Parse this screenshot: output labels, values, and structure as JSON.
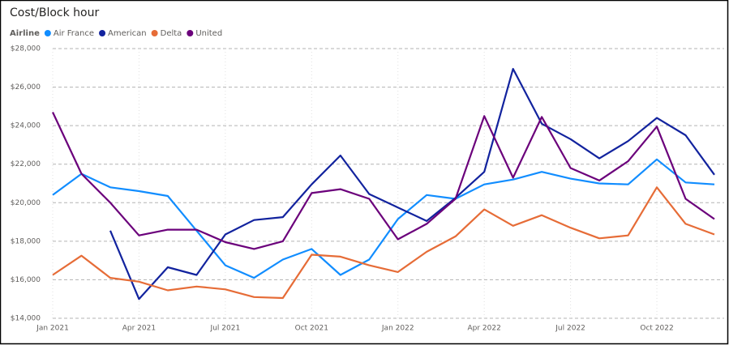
{
  "chart_data": {
    "type": "line",
    "title": "Cost/Block hour",
    "legend_title": "Airline",
    "legend": "top-left",
    "grid": true,
    "categories": [
      "Jan 2021",
      null,
      null,
      "Apr 2021",
      null,
      null,
      "Jul 2021",
      null,
      null,
      "Oct 2021",
      null,
      null,
      "Jan 2022",
      null,
      null,
      "Apr 2022",
      null,
      null,
      "Jul 2022",
      null,
      null,
      "Oct 2022",
      null,
      null
    ],
    "ylim": [
      14000,
      28000
    ],
    "yticks": [
      {
        "value": 14000,
        "label": "$14,000"
      },
      {
        "value": 16000,
        "label": "$16,000"
      },
      {
        "value": 18000,
        "label": "$18,000"
      },
      {
        "value": 20000,
        "label": "$20,000"
      },
      {
        "value": 22000,
        "label": "$22,000"
      },
      {
        "value": 24000,
        "label": "$24,000"
      },
      {
        "value": 26000,
        "label": "$26,000"
      },
      {
        "value": 28000,
        "label": "$28,000"
      }
    ],
    "series": [
      {
        "name": "Air France",
        "color": "#118dff",
        "values": [
          20400,
          21500,
          20800,
          20600,
          20350,
          18550,
          16750,
          16100,
          17050,
          17600,
          16250,
          17050,
          19150,
          20400,
          20200,
          20950,
          21200,
          21600,
          21250,
          21000,
          20950,
          22250,
          21050,
          20950
        ]
      },
      {
        "name": "American",
        "color": "#12239e",
        "values": [
          null,
          null,
          18550,
          15000,
          16650,
          16250,
          18350,
          19100,
          19250,
          20950,
          22450,
          20450,
          19750,
          19050,
          20250,
          21600,
          26950,
          24100,
          23300,
          22300,
          23200,
          24400,
          23500,
          21450
        ]
      },
      {
        "name": "Delta",
        "color": "#e66c37",
        "values": [
          16250,
          17250,
          16100,
          15900,
          15450,
          15650,
          15500,
          15100,
          15050,
          17300,
          17200,
          16750,
          16400,
          17450,
          18250,
          19650,
          18800,
          19350,
          18700,
          18150,
          18300,
          20800,
          18900,
          18350
        ]
      },
      {
        "name": "United",
        "color": "#6b007b",
        "values": [
          24700,
          21500,
          20000,
          18300,
          18600,
          18600,
          17950,
          17600,
          18000,
          20500,
          20700,
          20200,
          18100,
          18900,
          20200,
          24500,
          21300,
          24450,
          21800,
          21150,
          22150,
          23950,
          20200,
          19150
        ]
      }
    ]
  }
}
